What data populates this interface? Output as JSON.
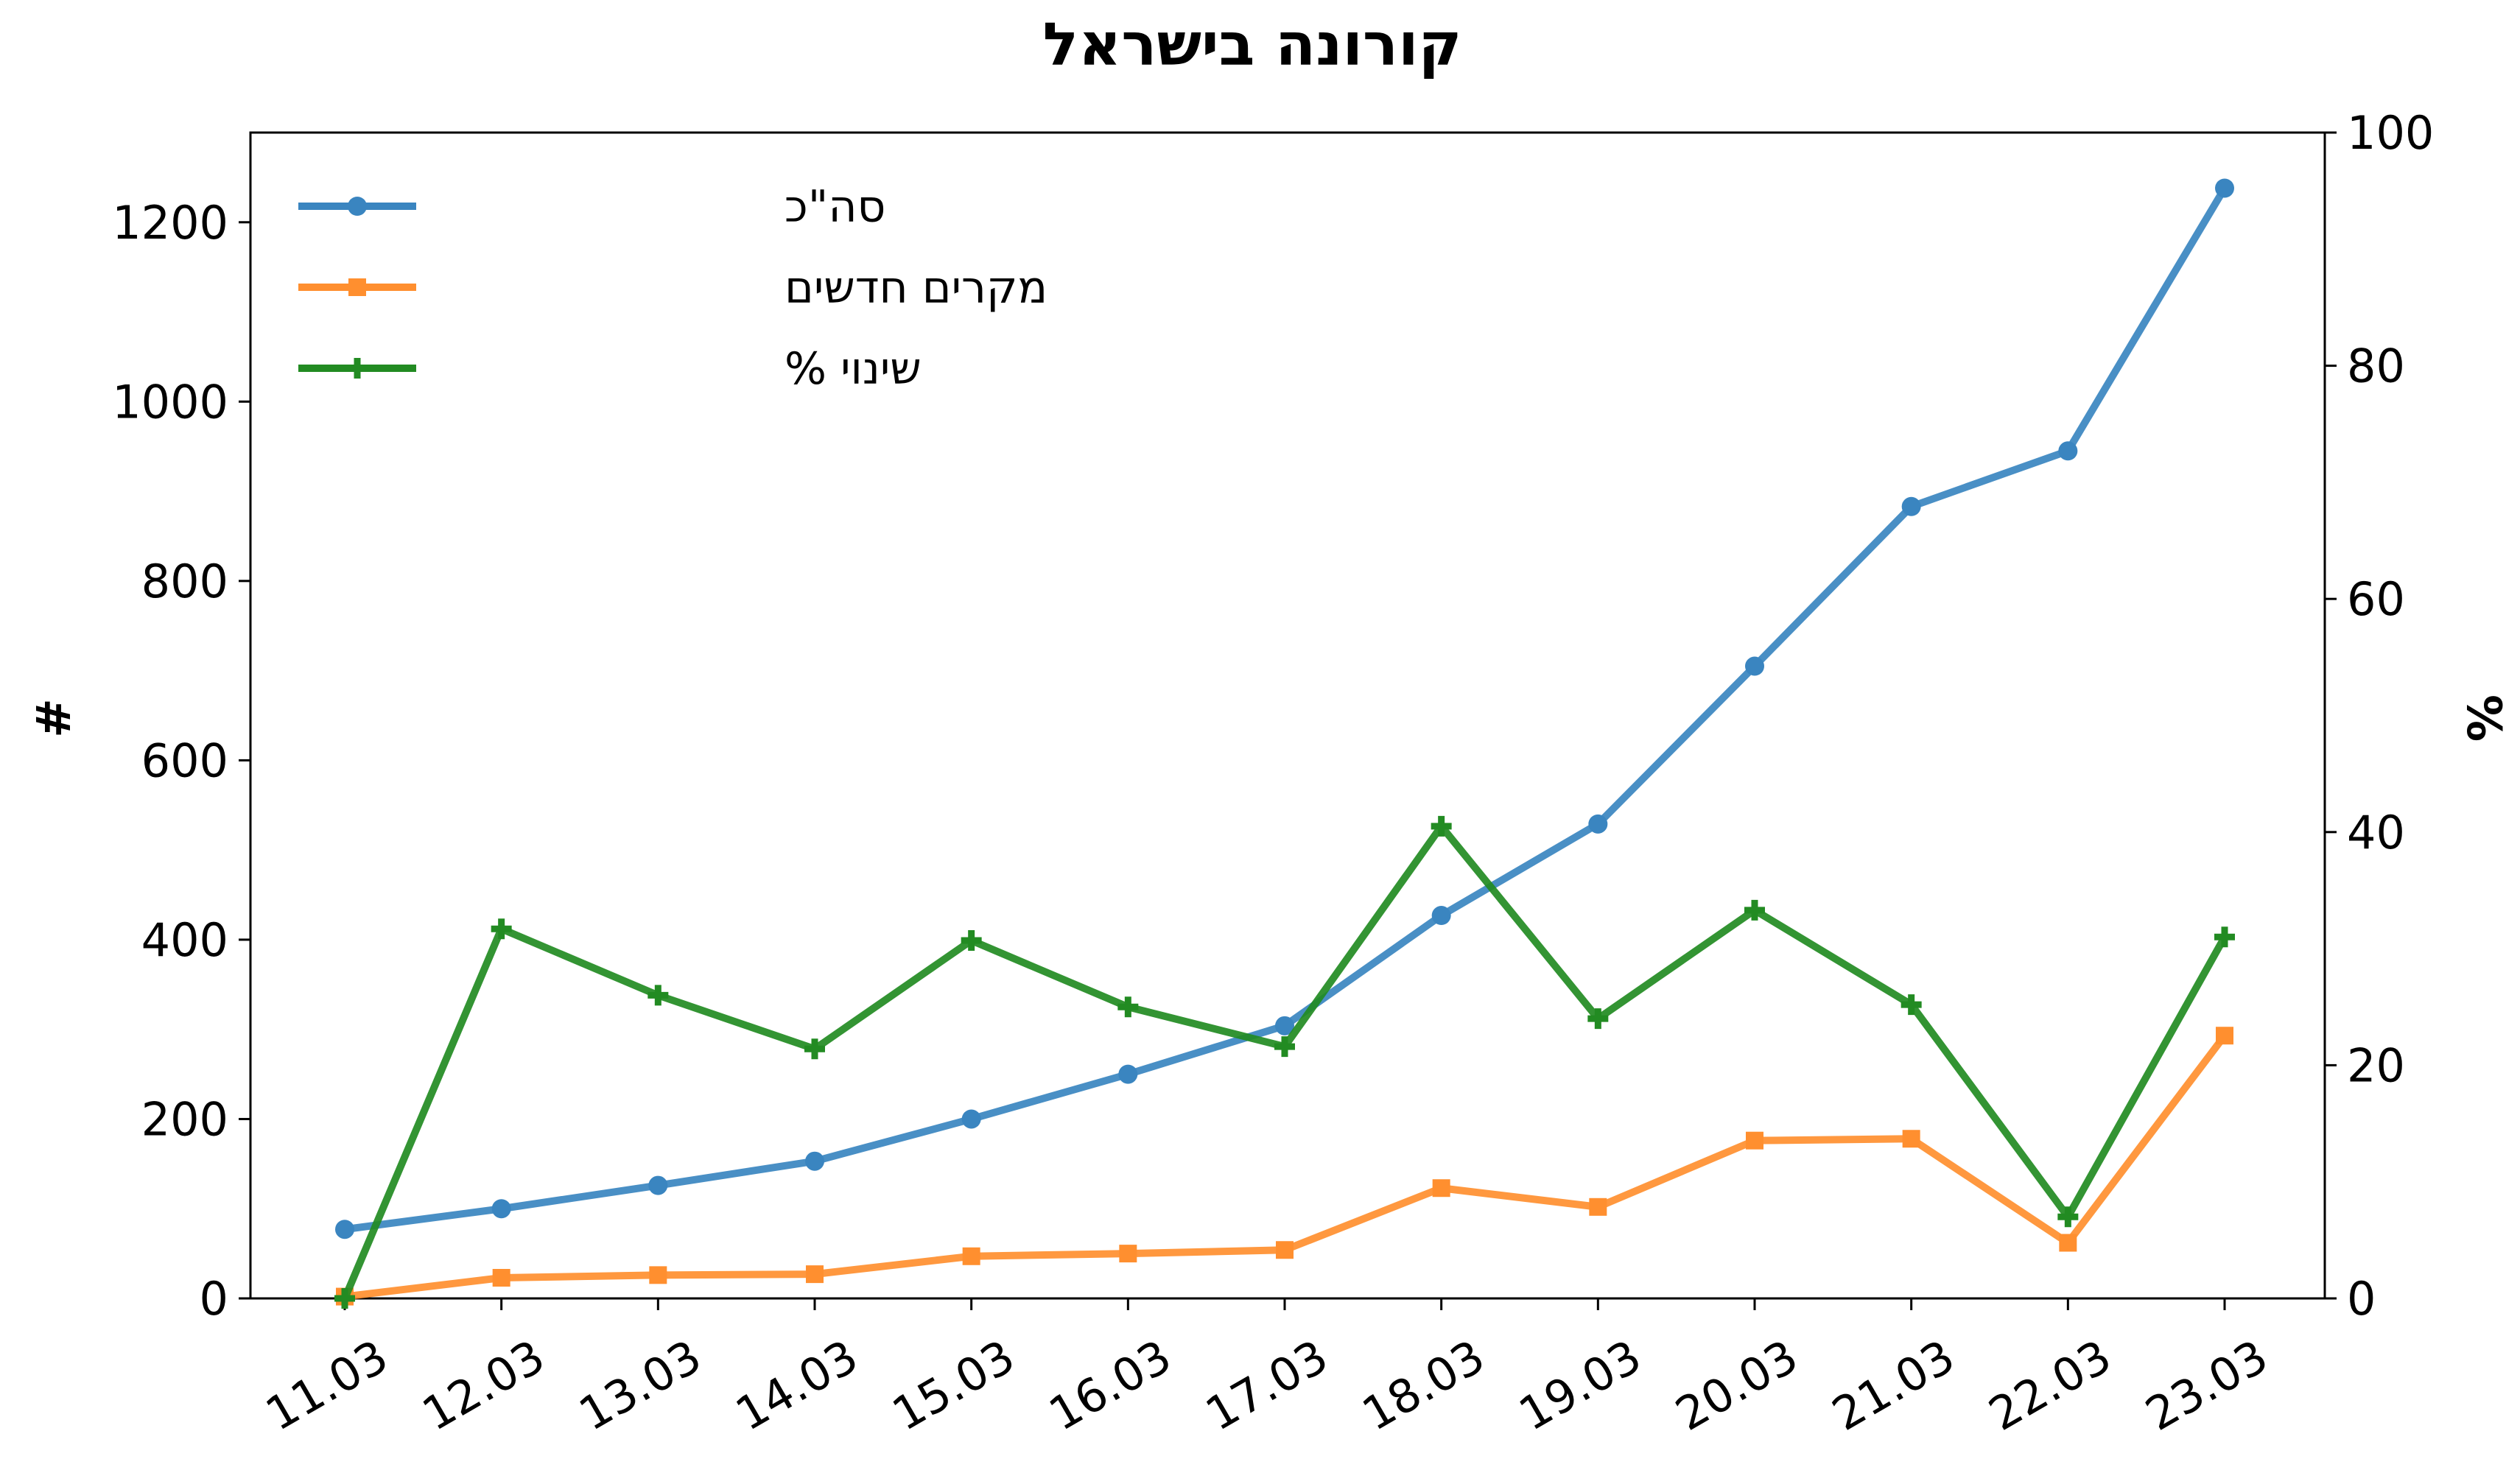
{
  "chart_data": {
    "type": "line",
    "title": "קורונה בישראל",
    "xlabel": "",
    "ylabel": "#",
    "y2label": "%",
    "categories": [
      "11.03",
      "12.03",
      "13.03",
      "14.03",
      "15.03",
      "16.03",
      "17.03",
      "18.03",
      "19.03",
      "20.03",
      "21.03",
      "22.03",
      "23.03"
    ],
    "ylim": [
      0,
      1300
    ],
    "y_ticks": [
      0,
      200,
      400,
      600,
      800,
      1000,
      1200
    ],
    "y2lim": [
      0,
      100
    ],
    "y2_ticks": [
      0,
      20,
      40,
      60,
      80,
      100
    ],
    "grid": false,
    "legend_position": "top-left",
    "series": [
      {
        "name": "סה\"כ",
        "axis": "left",
        "marker": "circle",
        "color": "#3a85c0",
        "values": [
          77,
          100,
          126,
          153,
          200,
          250,
          304,
          427,
          529,
          705,
          883,
          945,
          1238
        ]
      },
      {
        "name": "מקרים חדשים",
        "axis": "left",
        "marker": "square",
        "color": "#ff8f2f",
        "values": [
          2,
          23,
          26,
          27,
          47,
          50,
          54,
          123,
          102,
          176,
          178,
          62,
          293
        ]
      },
      {
        "name": "שינוי %",
        "axis": "right",
        "marker": "plus",
        "color": "#228b22",
        "values": [
          0,
          31.7,
          26,
          21.4,
          30.7,
          25,
          21.6,
          40.5,
          24,
          33.3,
          25.2,
          7,
          31
        ]
      }
    ]
  }
}
